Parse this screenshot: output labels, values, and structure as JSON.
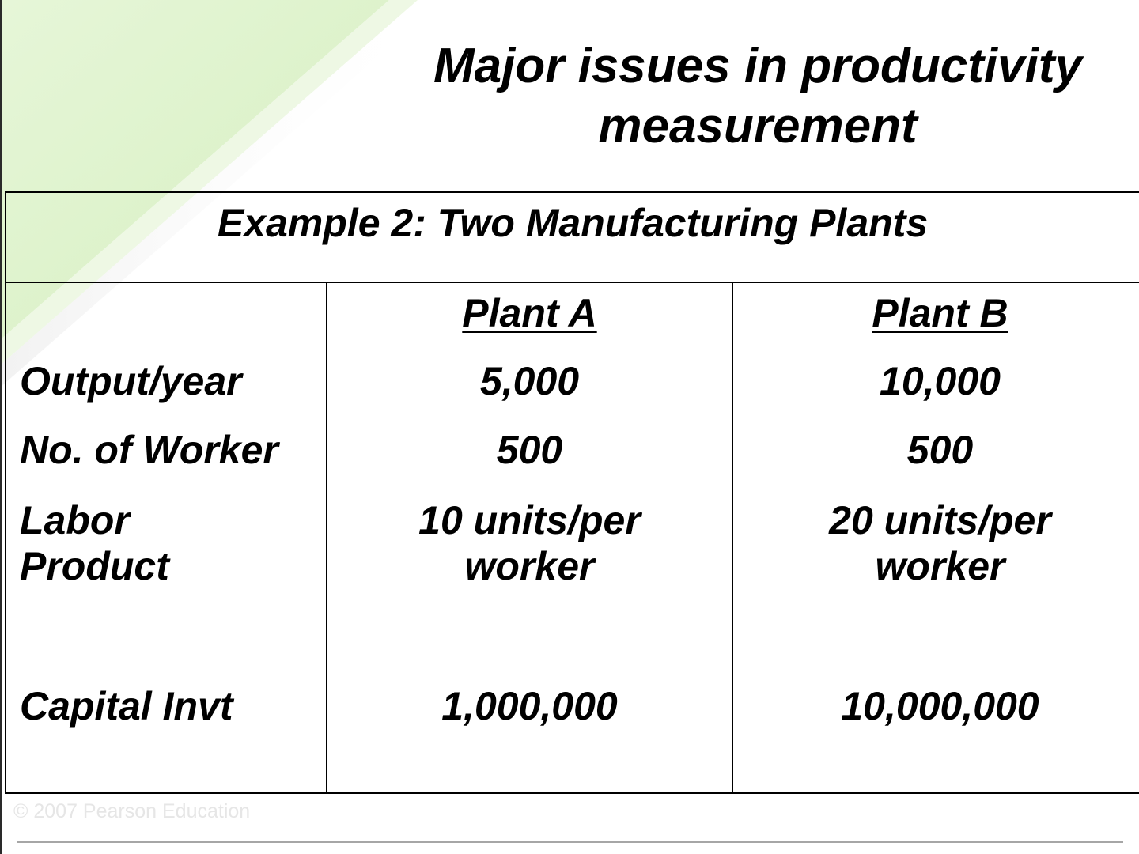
{
  "slide": {
    "title_line1": "Major issues in productivity",
    "title_line2": "measurement",
    "accent_color": "#e4f5d6",
    "accent_stripe_color": "#c9e7b0"
  },
  "table": {
    "caption": "Example 2: Two Manufacturing Plants",
    "columns": [
      "",
      "Plant A",
      "Plant B"
    ],
    "rows": [
      {
        "label": "Output/year",
        "plant_a": "5,000",
        "plant_b": "10,000"
      },
      {
        "label": "No. of Worker",
        "plant_a": "500",
        "plant_b": "500"
      },
      {
        "label_line1": "Labor",
        "label_line2": "Product",
        "plant_a_line1": "10 units/per",
        "plant_a_line2": "worker",
        "plant_b_line1": "20 units/per",
        "plant_b_line2": "worker"
      },
      {
        "label": "Capital Invt",
        "plant_a": "1,000,000",
        "plant_b": "10,000,000"
      }
    ]
  },
  "footer": {
    "copyright": "© 2007 Pearson Education"
  }
}
